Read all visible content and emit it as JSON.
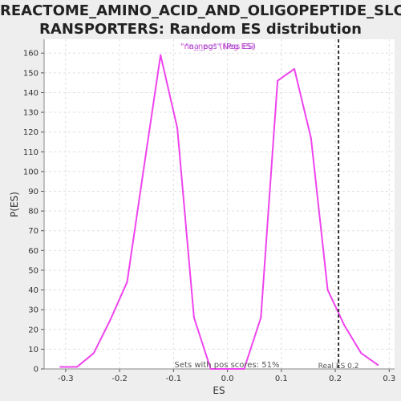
{
  "title_lines": [
    "REACTOME_AMINO_ACID_AND_OLIGOPEPTIDE_SLC_T",
    "RANSPORTERS: Random ES distribution"
  ],
  "colors": {
    "series": "#ee44ee",
    "real_es_line": "#333333",
    "grid": "#e0e0e0",
    "plot_bg": "#ffffff",
    "page_bg": "#eeeeee"
  },
  "chart_data": {
    "type": "line",
    "xlabel": "ES",
    "ylabel": "P(ES)",
    "xlim": [
      -0.34,
      0.31
    ],
    "ylim": [
      0,
      167
    ],
    "xticks": [
      -0.3,
      -0.2,
      -0.1,
      0.0,
      0.1,
      0.2,
      0.3
    ],
    "xtick_labels": [
      "-0.3",
      "-0.2",
      "-0.1",
      "0.0",
      "0.1",
      "0.2",
      "0.3"
    ],
    "yticks": [
      0,
      10,
      20,
      30,
      40,
      50,
      60,
      70,
      80,
      90,
      100,
      110,
      120,
      130,
      140,
      150,
      160
    ],
    "grid": true,
    "legend": {
      "placement": "top-center",
      "entries": [
        "\"na_neg\" (Neg ES)",
        "\"na_pos\" (Pos ES)"
      ]
    },
    "series": [
      {
        "x": [
          -0.31,
          -0.279,
          -0.248,
          -0.217,
          -0.186,
          -0.155,
          -0.124,
          -0.093,
          -0.062,
          -0.031,
          0.0,
          0.031,
          0.062,
          0.093,
          0.124,
          0.155,
          0.186,
          0.217,
          0.248,
          0.279
        ],
        "y": [
          1,
          1,
          8,
          25,
          44,
          102,
          159,
          122,
          26,
          0,
          0,
          0,
          26,
          146,
          152,
          117,
          40,
          22,
          8,
          2
        ]
      }
    ],
    "real_es": {
      "x": 0.206,
      "label": "Real ES 0.2"
    },
    "annotation": "Sets with pos scores: 51%"
  }
}
